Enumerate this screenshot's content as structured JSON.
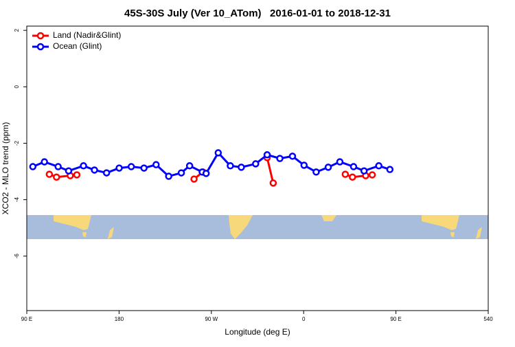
{
  "chart_data": {
    "type": "line",
    "title": "45S-30S July (Ver 10_ATom)   2016-01-01 to 2018-12-31",
    "x_label": "Longitude (deg E)",
    "y_label": "XCO2 - MLO trend (ppm)",
    "xlim": [
      90,
      540
    ],
    "xticks": [
      {
        "value": 90,
        "label": "90 E"
      },
      180,
      {
        "value": 270,
        "label": "90 W"
      },
      {
        "value": 360,
        "label": "0"
      },
      {
        "value": 450,
        "label": "90 E"
      },
      540
    ],
    "ylim": [
      -7.93,
      2.15
    ],
    "yticks": [
      2,
      0,
      -2,
      -4,
      -6
    ],
    "legend": "top-left",
    "series": [
      {
        "name": "Land (Nadir&Glint)",
        "color": "#ff0000",
        "x": [
          112,
          119,
          132.4,
          138.8,
          null,
          253.1,
          261.7,
          null,
          324.4,
          330.3,
          null,
          400.6,
          407.6,
          420.5,
          426.9
        ],
        "values": [
          -3.1,
          -3.2,
          -3.15,
          -3.12,
          null,
          -3.27,
          -3.02,
          null,
          -2.51,
          -3.41,
          null,
          -3.1,
          -3.2,
          -3.15,
          -3.12
        ]
      },
      {
        "name": "Ocean (Glint)",
        "color": "#0000ff",
        "x": [
          95.9,
          107.2,
          120.6,
          130.8,
          145.3,
          156,
          167.8,
          180.1,
          191.9,
          204.3,
          216.1,
          228.4,
          240.7,
          248.8,
          261.1,
          264.9,
          276.7,
          288.5,
          299.2,
          313.2,
          324.4,
          336.8,
          349.1,
          360.4,
          372.2,
          384,
          395.3,
          408.7,
          418.9,
          433.3,
          444.1
        ],
        "values": [
          -2.83,
          -2.66,
          -2.83,
          -2.98,
          -2.8,
          -2.95,
          -3.05,
          -2.88,
          -2.83,
          -2.88,
          -2.76,
          -3.17,
          -3.05,
          -2.8,
          -3.02,
          -3.07,
          -2.34,
          -2.8,
          -2.85,
          -2.73,
          -2.41,
          -2.54,
          -2.46,
          -2.78,
          -3.02,
          -2.85,
          -2.66,
          -2.83,
          -2.98,
          -2.8,
          -2.93
        ]
      }
    ]
  }
}
